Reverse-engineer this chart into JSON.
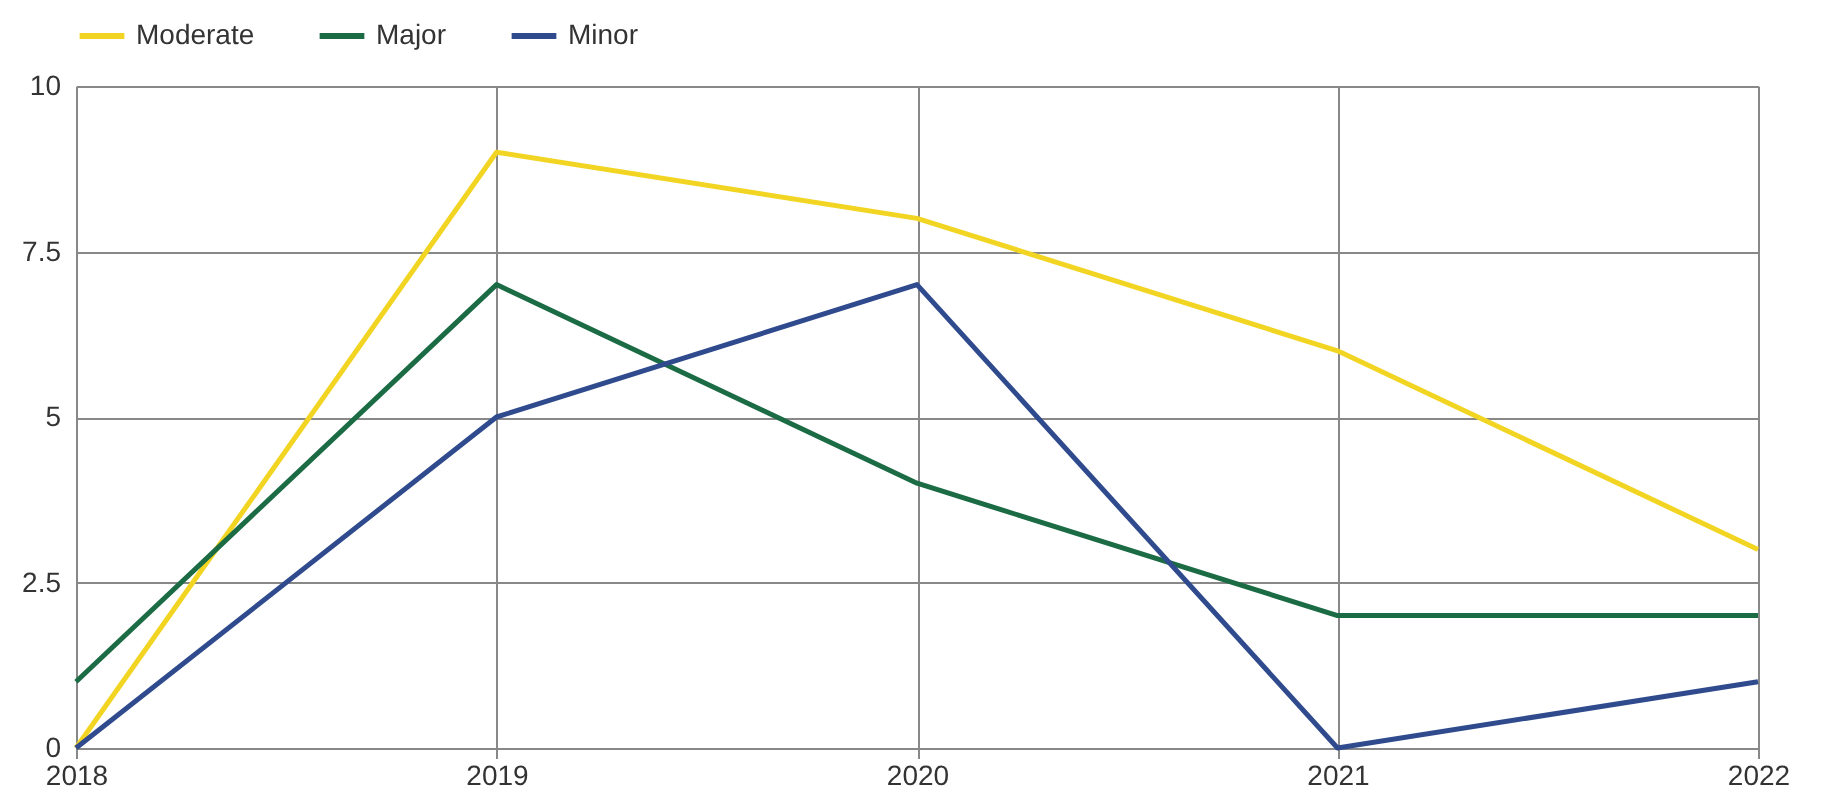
{
  "chart_data": {
    "type": "line",
    "x": [
      2018,
      2019,
      2020,
      2021,
      2022
    ],
    "series": [
      {
        "name": "Moderate",
        "color": "#f2d523",
        "values": [
          0,
          9,
          8,
          6,
          3
        ]
      },
      {
        "name": "Major",
        "color": "#1b6b44",
        "values": [
          1,
          7,
          4,
          2,
          2
        ]
      },
      {
        "name": "Minor",
        "color": "#2f4b8e",
        "values": [
          0,
          5,
          7,
          0,
          1
        ]
      }
    ],
    "xlim": [
      2018,
      2022
    ],
    "xticks": [
      2018,
      2019,
      2020,
      2021,
      2022
    ],
    "ylim": [
      0,
      10
    ],
    "yticks": [
      0,
      2.5,
      5,
      7.5,
      10
    ],
    "grid": true,
    "legend": "top left",
    "marker": "none",
    "line_style": "solid"
  }
}
